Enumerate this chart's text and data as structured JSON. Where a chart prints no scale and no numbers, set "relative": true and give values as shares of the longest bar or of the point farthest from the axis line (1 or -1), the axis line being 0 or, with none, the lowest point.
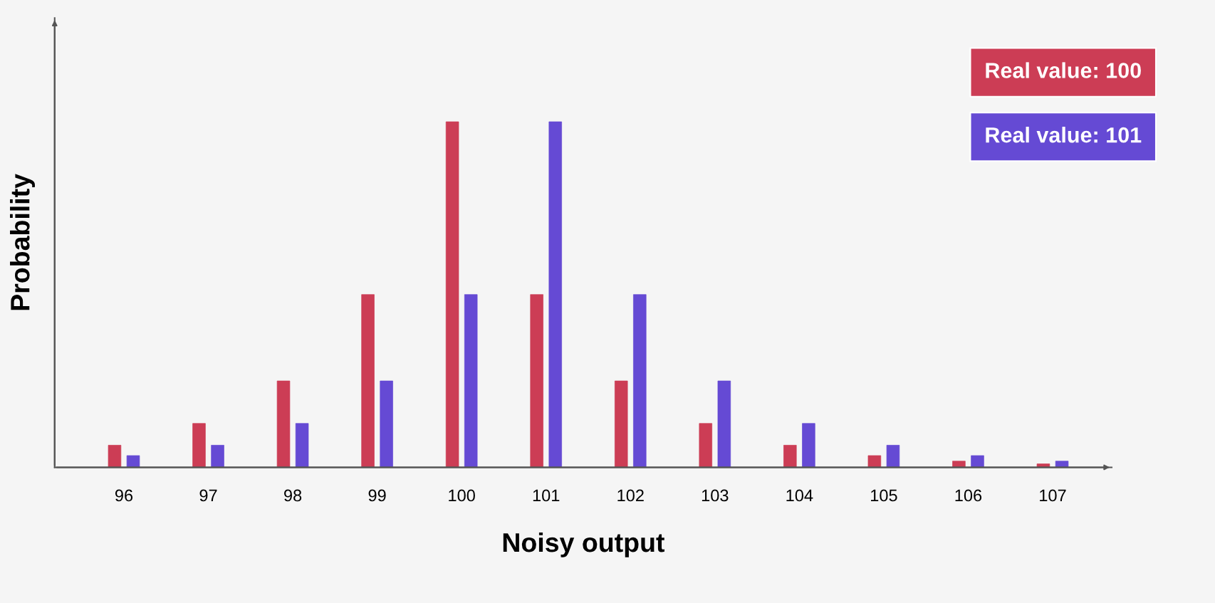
{
  "chart_data": {
    "type": "bar",
    "xlabel": "Noisy output",
    "ylabel": "Probability",
    "relative": true,
    "legend": "top right",
    "categories": [
      "96",
      "97",
      "98",
      "99",
      "100",
      "101",
      "102",
      "103",
      "104",
      "105",
      "106",
      "107"
    ],
    "series": [
      {
        "name": "Real value: 100",
        "color": "#cc3d55",
        "values": [
          0.064,
          0.127,
          0.25,
          0.5,
          1,
          0.5,
          0.25,
          0.127,
          0.064,
          0.034,
          0.018,
          0.01
        ]
      },
      {
        "name": "Real value: 101",
        "color": "#654ad4",
        "values": [
          0.034,
          0.064,
          0.127,
          0.25,
          0.5,
          1,
          0.5,
          0.25,
          0.127,
          0.064,
          0.034,
          0.018
        ]
      }
    ]
  }
}
